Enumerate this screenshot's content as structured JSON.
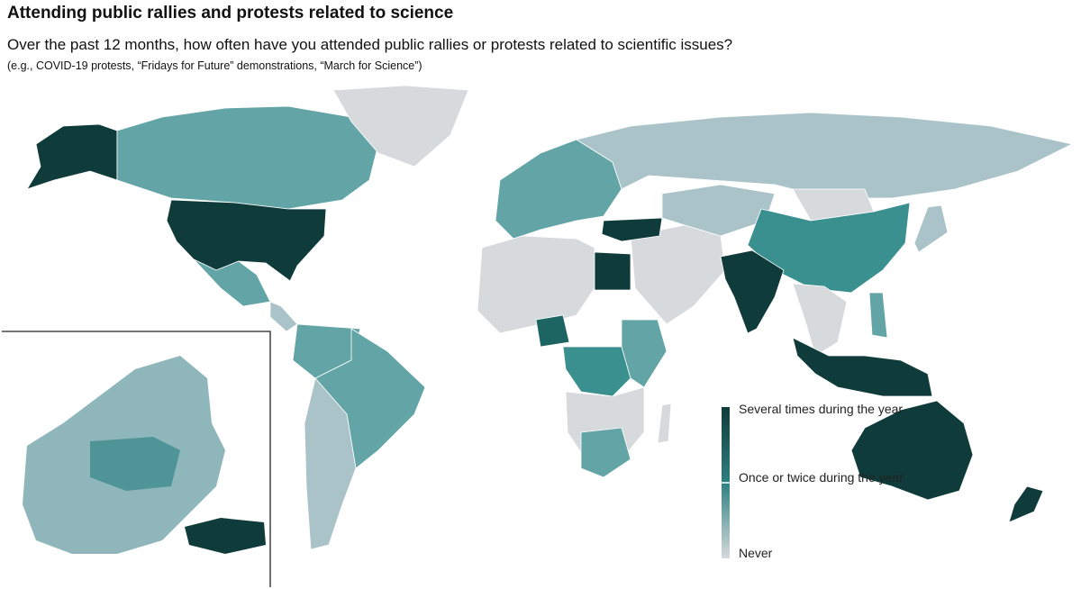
{
  "title": "Attending public rallies and protests related to science",
  "subtitle": "Over the past 12 months, how often have you attended public rallies or protests related to scientific issues?",
  "examples": "(e.g., COVID-19 protests, “Fridays for Future” demonstrations, “March for Science”)",
  "legend": {
    "high": "Several times during the year",
    "mid": "Once or twice during the year",
    "low": "Never"
  },
  "colors": {
    "several": "#0f3b3a",
    "high": "#1d6563",
    "once": "#3a8f8f",
    "mid": "#63a5a7",
    "low": "#a9c3c9",
    "never": "#d6dadd"
  },
  "regions": [
    {
      "name": "alaska",
      "level": "several"
    },
    {
      "name": "canada",
      "level": "mid"
    },
    {
      "name": "greenland",
      "level": "never"
    },
    {
      "name": "united-states",
      "level": "several"
    },
    {
      "name": "mexico",
      "level": "mid"
    },
    {
      "name": "central-america",
      "level": "low"
    },
    {
      "name": "south-america-north",
      "level": "mid"
    },
    {
      "name": "brazil",
      "level": "mid"
    },
    {
      "name": "south-america-south",
      "level": "low"
    },
    {
      "name": "europe",
      "level": "mid"
    },
    {
      "name": "russia",
      "level": "low"
    },
    {
      "name": "north-africa",
      "level": "never"
    },
    {
      "name": "egypt",
      "level": "several"
    },
    {
      "name": "middle-east",
      "level": "never"
    },
    {
      "name": "turkey",
      "level": "several"
    },
    {
      "name": "central-asia",
      "level": "low"
    },
    {
      "name": "china",
      "level": "once"
    },
    {
      "name": "mongolia",
      "level": "never"
    },
    {
      "name": "india",
      "level": "several"
    },
    {
      "name": "southeast-asia",
      "level": "never"
    },
    {
      "name": "indonesia",
      "level": "several"
    },
    {
      "name": "philippines",
      "level": "mid"
    },
    {
      "name": "japan",
      "level": "low"
    },
    {
      "name": "nigeria",
      "level": "high"
    },
    {
      "name": "central-africa",
      "level": "once"
    },
    {
      "name": "east-africa",
      "level": "mid"
    },
    {
      "name": "southern-africa",
      "level": "never"
    },
    {
      "name": "south-africa",
      "level": "mid"
    },
    {
      "name": "madagascar",
      "level": "never"
    },
    {
      "name": "australia",
      "level": "several"
    },
    {
      "name": "new-zealand",
      "level": "several"
    }
  ]
}
